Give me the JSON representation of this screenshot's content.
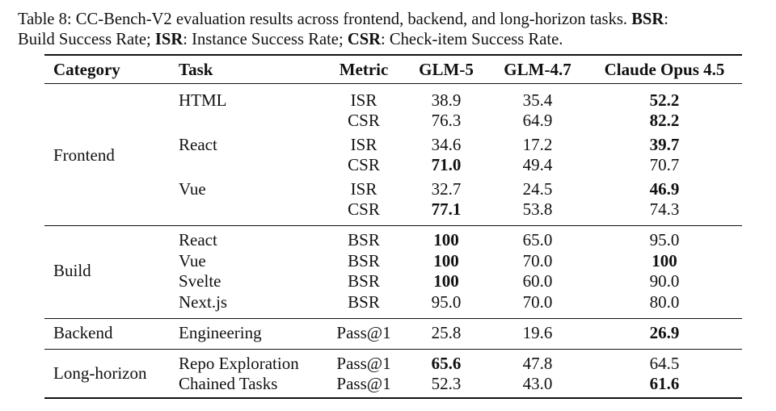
{
  "caption": [
    [
      {
        "text": "Table 8: CC-Bench-V2 evaluation results across frontend, backend, and long-horizon tasks. "
      },
      {
        "text": "BSR",
        "bold": true
      },
      {
        "text": ":"
      }
    ],
    [
      {
        "text": "Build Success Rate; "
      },
      {
        "text": "ISR",
        "bold": true
      },
      {
        "text": ": Instance Success Rate; "
      },
      {
        "text": "CSR",
        "bold": true
      },
      {
        "text": ": Check-item Success Rate."
      }
    ]
  ],
  "table": {
    "header": [
      "Category",
      "Task",
      "Metric",
      "GLM-5",
      "GLM-4.7",
      "Claude Opus 4.5"
    ],
    "groups": [
      {
        "category": "Frontend",
        "rows": [
          {
            "task": "HTML",
            "metric": "ISR",
            "values": [
              "38.9",
              "35.4",
              "52.2"
            ],
            "bold": [
              false,
              false,
              true
            ]
          },
          {
            "task": null,
            "metric": "CSR",
            "values": [
              "76.3",
              "64.9",
              "82.2"
            ],
            "bold": [
              false,
              false,
              true
            ]
          },
          {
            "task": "React",
            "metric": "ISR",
            "values": [
              "34.6",
              "17.2",
              "39.7"
            ],
            "bold": [
              false,
              false,
              true
            ]
          },
          {
            "task": null,
            "metric": "CSR",
            "values": [
              "71.0",
              "49.4",
              "70.7"
            ],
            "bold": [
              true,
              false,
              false
            ]
          },
          {
            "task": "Vue",
            "metric": "ISR",
            "values": [
              "32.7",
              "24.5",
              "46.9"
            ],
            "bold": [
              false,
              false,
              true
            ]
          },
          {
            "task": null,
            "metric": "CSR",
            "values": [
              "77.1",
              "53.8",
              "74.3"
            ],
            "bold": [
              true,
              false,
              false
            ]
          }
        ]
      },
      {
        "category": "Build",
        "rows": [
          {
            "task": "React",
            "metric": "BSR",
            "values": [
              "100",
              "65.0",
              "95.0"
            ],
            "bold": [
              true,
              false,
              false
            ]
          },
          {
            "task": "Vue",
            "metric": "BSR",
            "values": [
              "100",
              "70.0",
              "100"
            ],
            "bold": [
              true,
              false,
              true
            ]
          },
          {
            "task": "Svelte",
            "metric": "BSR",
            "values": [
              "100",
              "60.0",
              "90.0"
            ],
            "bold": [
              true,
              false,
              false
            ]
          },
          {
            "task": "Next.js",
            "metric": "BSR",
            "values": [
              "95.0",
              "70.0",
              "80.0"
            ],
            "bold": [
              false,
              false,
              false
            ]
          }
        ]
      },
      {
        "category": "Backend",
        "rows": [
          {
            "task": "Engineering",
            "metric": "Pass@1",
            "values": [
              "25.8",
              "19.6",
              "26.9"
            ],
            "bold": [
              false,
              false,
              true
            ]
          }
        ]
      },
      {
        "category": "Long-horizon",
        "rows": [
          {
            "task": "Repo Exploration",
            "metric": "Pass@1",
            "values": [
              "65.6",
              "47.8",
              "64.5"
            ],
            "bold": [
              true,
              false,
              false
            ]
          },
          {
            "task": "Chained Tasks",
            "metric": "Pass@1",
            "values": [
              "52.3",
              "43.0",
              "61.6"
            ],
            "bold": [
              false,
              false,
              true
            ]
          }
        ]
      }
    ]
  }
}
